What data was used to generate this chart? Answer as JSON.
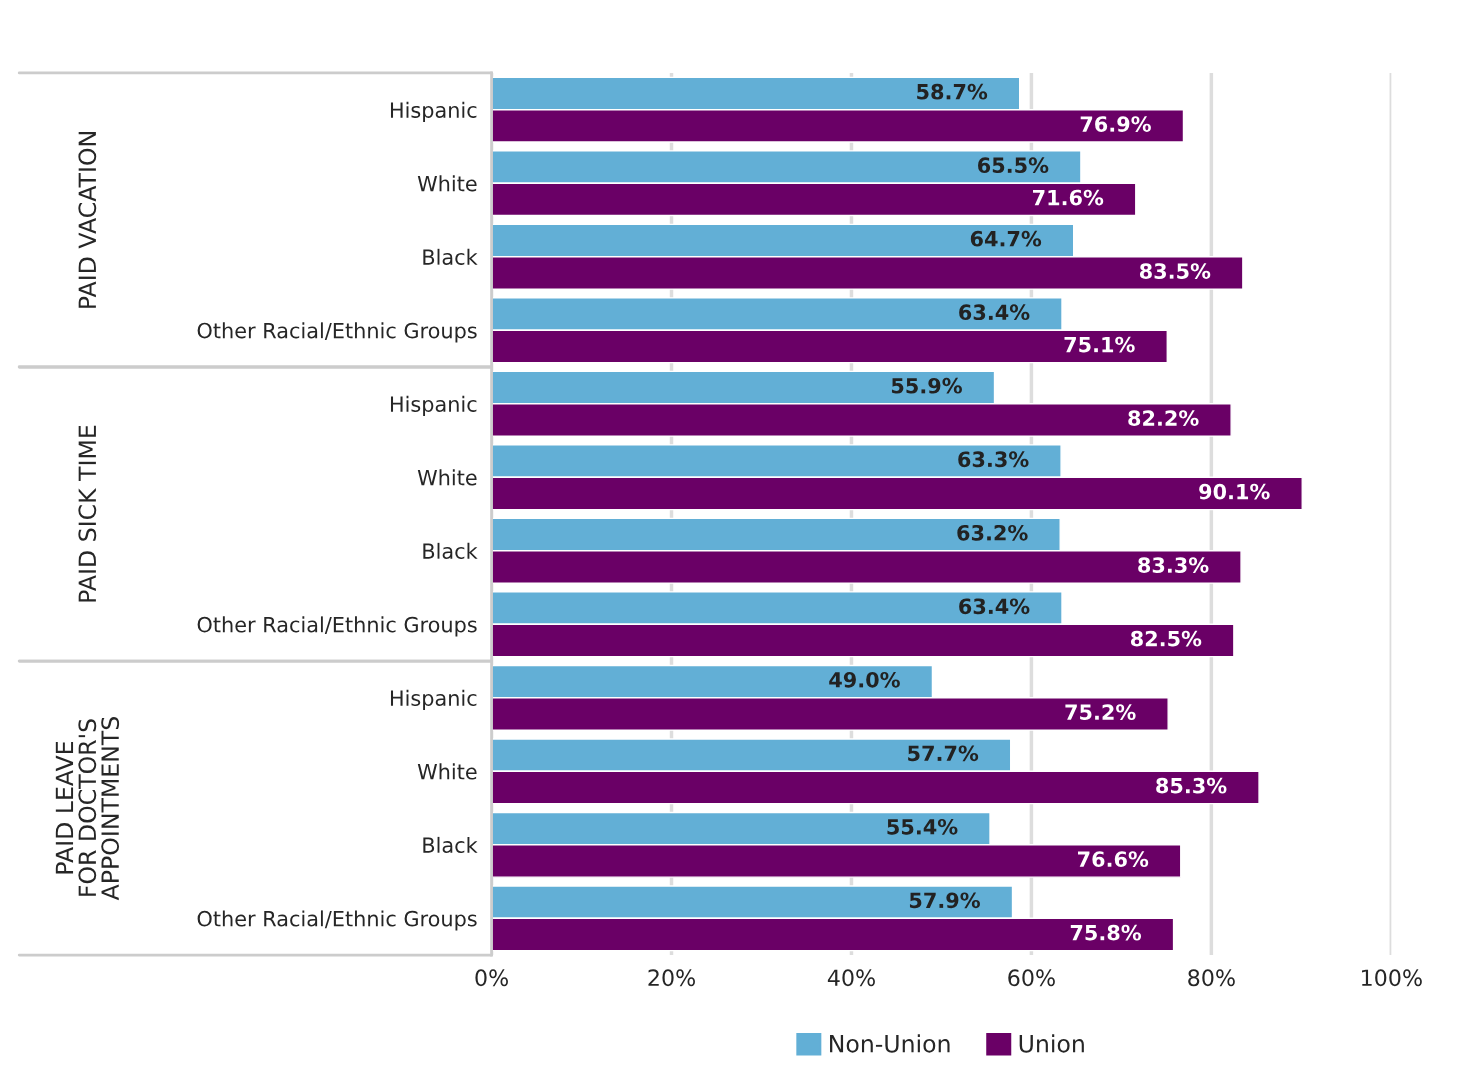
{
  "chart_data": {
    "type": "bar",
    "orientation": "horizontal",
    "categories": [
      "Hispanic",
      "White",
      "Black",
      "Other Racial/Ethnic Groups",
      "Hispanic",
      "White",
      "Black",
      "Other Racial/Ethnic Groups",
      "Hispanic",
      "White",
      "Black",
      "Other Racial/Ethnic Groups"
    ],
    "series": [
      {
        "name": "Non-Union",
        "color": "#62afd6",
        "values": [
          58.7,
          65.5,
          64.7,
          63.4,
          55.9,
          63.3,
          63.2,
          63.4,
          49.0,
          57.7,
          55.4,
          57.9
        ],
        "value_labels": [
          "58.7%",
          "65.5%",
          "64.7%",
          "63.4%",
          "55.9%",
          "63.3%",
          "63.2%",
          "63.4%",
          "49.0%",
          "57.7%",
          "55.4%",
          "57.9%"
        ]
      },
      {
        "name": "Union",
        "color": "#6a0066",
        "values": [
          76.9,
          71.6,
          83.5,
          75.1,
          82.2,
          90.1,
          83.3,
          82.5,
          75.2,
          85.3,
          76.6,
          75.8
        ],
        "value_labels": [
          "76.9%",
          "71.6%",
          "83.5%",
          "75.1%",
          "82.2%",
          "90.1%",
          "83.3%",
          "82.5%",
          "75.2%",
          "85.3%",
          "76.6%",
          "75.8%"
        ]
      }
    ],
    "annotations": [
      "PAID VACATION",
      "PAID SICK TIME",
      "PAID LEAVE\nFOR DOCTOR'S\nAPPOINTMENTS"
    ],
    "xlim": [
      0,
      100
    ],
    "xticks": [
      {
        "value": 0,
        "label": "0%"
      },
      {
        "value": 20,
        "label": "20%"
      },
      {
        "value": 40,
        "label": "40%"
      },
      {
        "value": 60,
        "label": "60%"
      },
      {
        "value": 80,
        "label": "80%"
      },
      {
        "value": 100,
        "label": "100%"
      }
    ],
    "grid": "x",
    "legend": "bottom"
  }
}
